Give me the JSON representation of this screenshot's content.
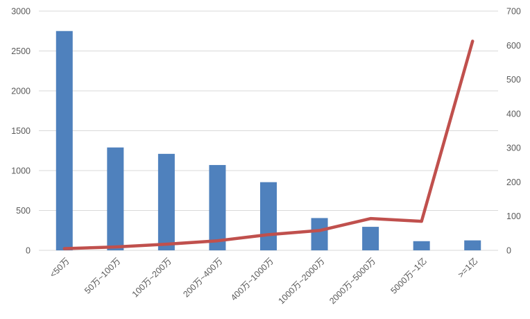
{
  "page": {
    "background": "#ffffff"
  },
  "chart_data": {
    "type": "bar",
    "subtype": "combo-bar-line-dual-axis",
    "title": "",
    "xlabel": "",
    "ylabel": "",
    "grid": true,
    "legend": null,
    "categories": [
      "<50万",
      "50万~100万",
      "100万~200万",
      "200万~400万",
      "400万~1000万",
      "1000万~2000万",
      "2000万~5000万",
      "5000万~1亿",
      ">=1亿"
    ],
    "series": [
      {
        "id": "columns",
        "type": "bar",
        "axis": "left",
        "color": "#4f81bd",
        "values": [
          2750,
          1290,
          1210,
          1070,
          855,
          405,
          295,
          115,
          125
        ]
      },
      {
        "id": "line",
        "type": "line",
        "axis": "right",
        "color": "#c0504d",
        "values": [
          5,
          10,
          18,
          28,
          46,
          58,
          93,
          85,
          612
        ]
      }
    ],
    "left_axis": {
      "min": 0,
      "max": 3000,
      "step": 500,
      "tick_labels": [
        "0",
        "500",
        "1000",
        "1500",
        "2000",
        "2500",
        "3000"
      ]
    },
    "right_axis": {
      "min": 0,
      "max": 700,
      "step": 100,
      "tick_labels": [
        "0",
        "100",
        "200",
        "300",
        "400",
        "500",
        "600",
        "700"
      ]
    },
    "colors": {
      "gridline": "#d9d9d9",
      "axis_text": "#595959"
    }
  }
}
